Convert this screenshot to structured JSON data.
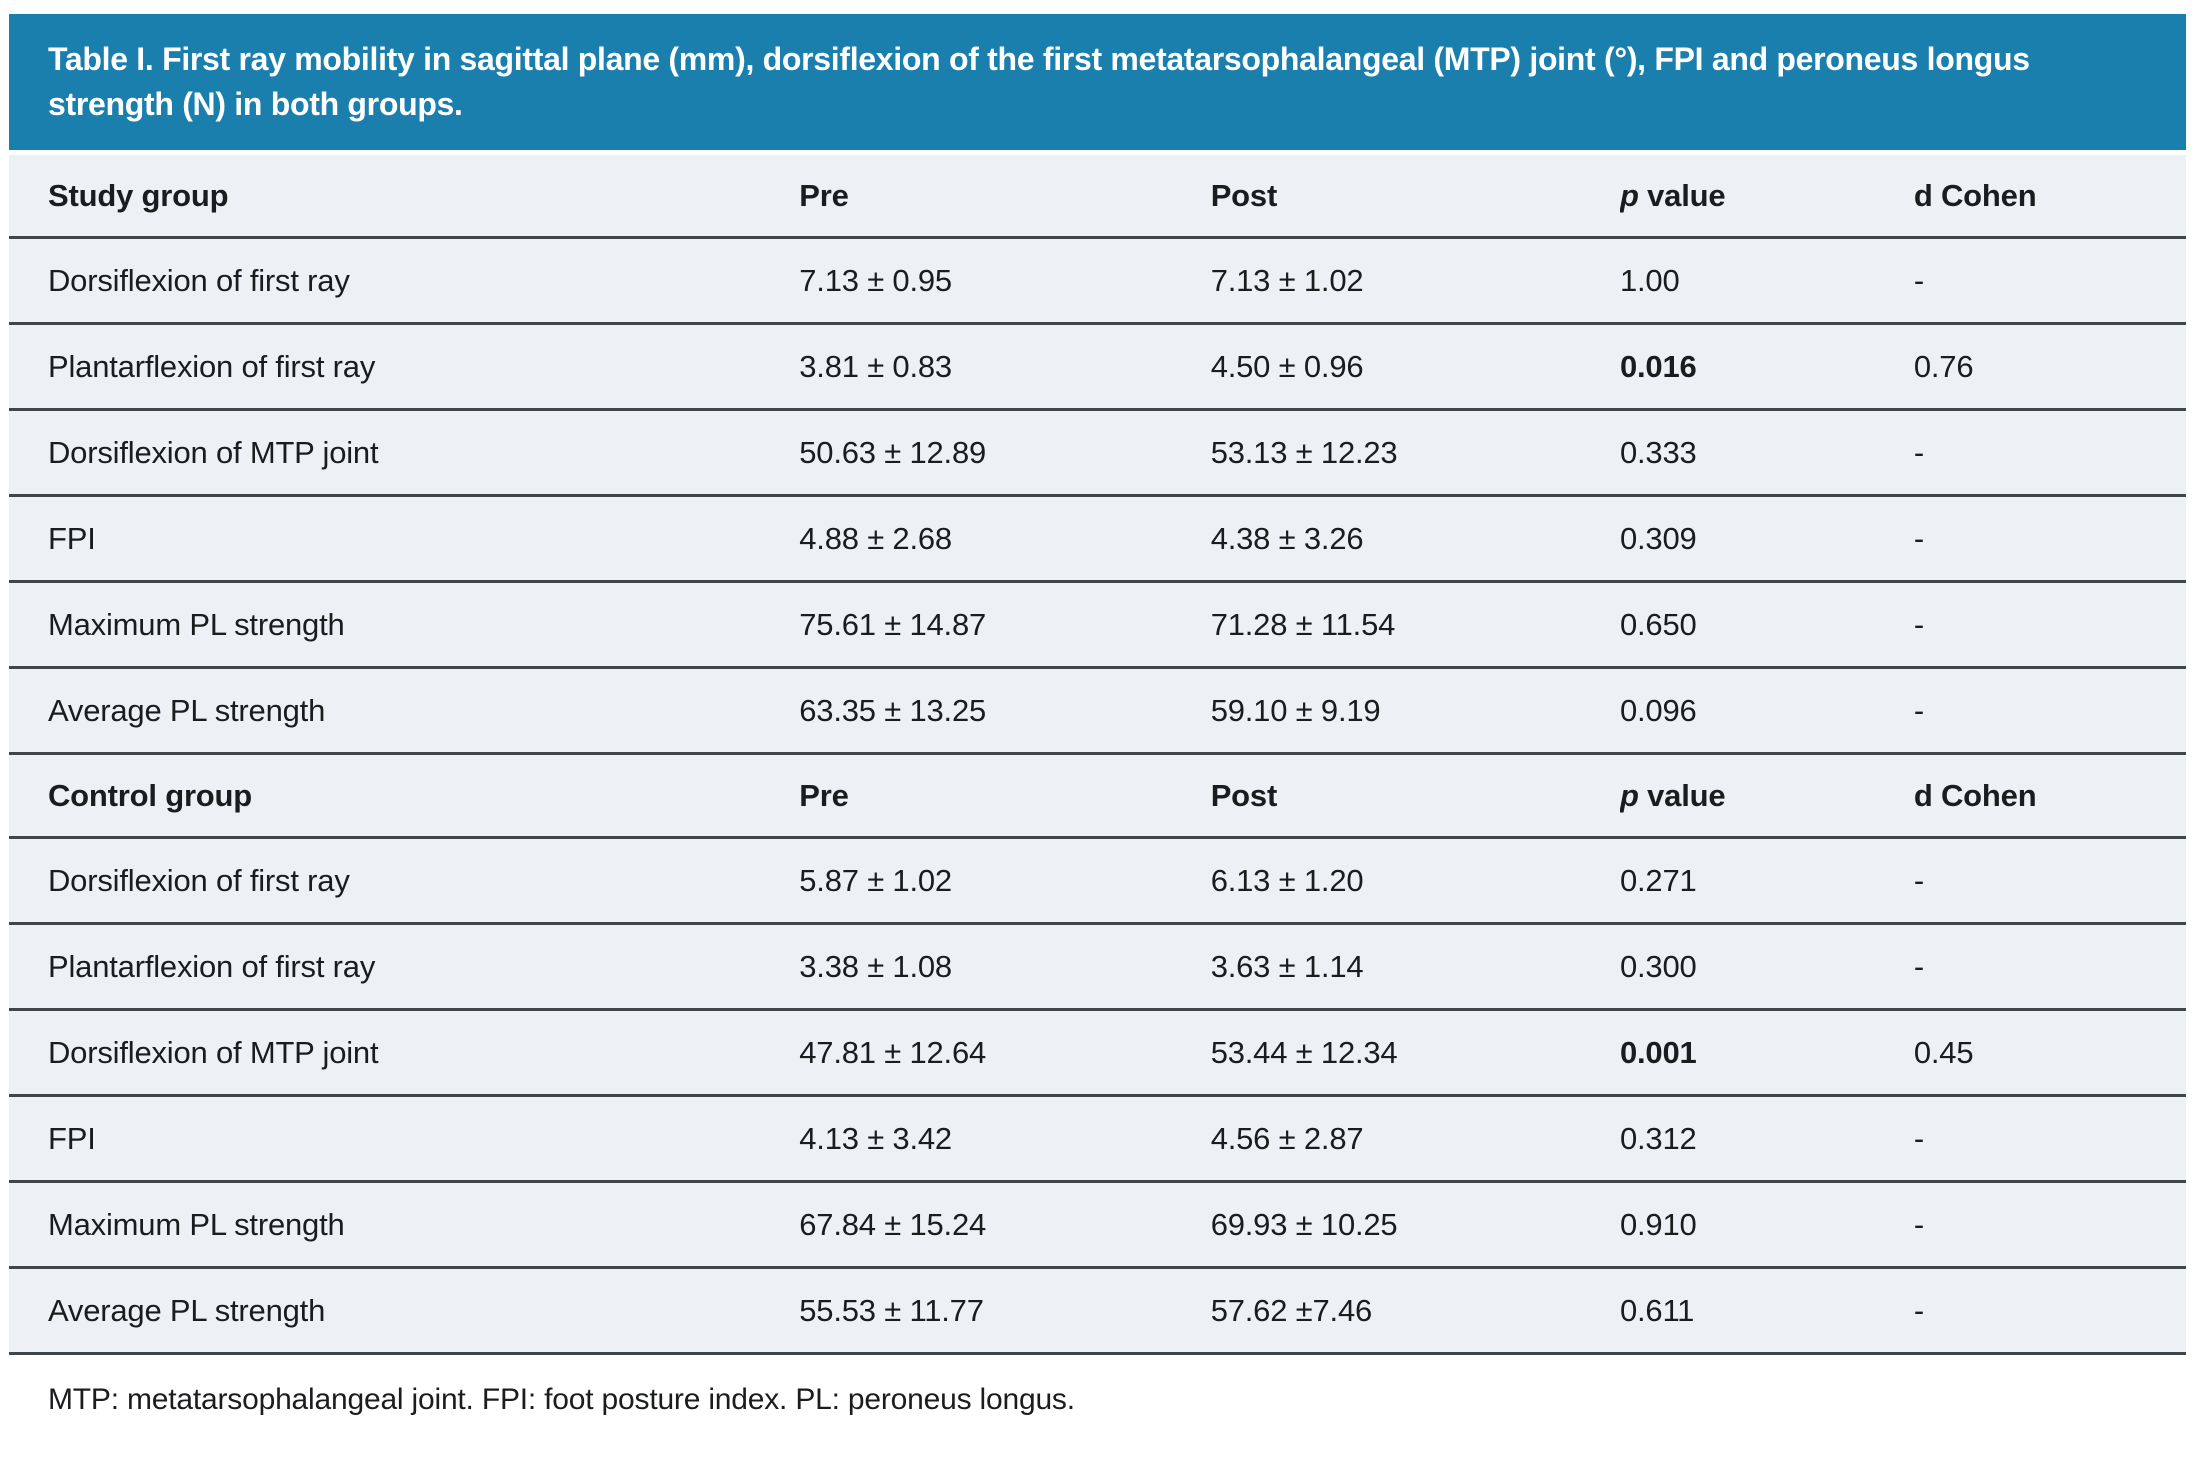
{
  "title": "Table I. First ray mobility in sagittal plane (mm), dorsiflexion of the first metatarsophalangeal (MTP) joint (°), FPI and peroneus longus strength (N) in both groups.",
  "footnote": "MTP: metatarsophalangeal joint. FPI: foot posture index. PL: peroneus longus.",
  "colors": {
    "header_bg": "#1b7fae",
    "row_bg": "#edf1f5",
    "separator_line": "#41464b",
    "title_text": "#ffffff",
    "body_text": "#1b1c1e"
  },
  "column_headers": {
    "pre": "Pre",
    "post": "Post",
    "p_italic": "p",
    "p_rest": " value",
    "d_cohen": "d Cohen"
  },
  "sections": [
    {
      "group_label": "Study group",
      "rows": [
        {
          "label": "Dorsiflexion of first ray",
          "pre": "7.13 ± 0.95",
          "post": "7.13 ± 1.02",
          "p": "1.00",
          "p_bold": false,
          "d": "-"
        },
        {
          "label": "Plantarflexion of first ray",
          "pre": "3.81 ± 0.83",
          "post": "4.50 ± 0.96",
          "p": "0.016",
          "p_bold": true,
          "d": "0.76"
        },
        {
          "label": "Dorsiflexion of MTP joint",
          "pre": "50.63 ± 12.89",
          "post": "53.13 ± 12.23",
          "p": "0.333",
          "p_bold": false,
          "d": "-"
        },
        {
          "label": "FPI",
          "pre": "4.88 ± 2.68",
          "post": "4.38 ± 3.26",
          "p": "0.309",
          "p_bold": false,
          "d": "-"
        },
        {
          "label": "Maximum PL strength",
          "pre": "75.61 ± 14.87",
          "post": "71.28 ± 11.54",
          "p": "0.650",
          "p_bold": false,
          "d": "-"
        },
        {
          "label": "Average PL strength",
          "pre": "63.35 ± 13.25",
          "post": "59.10 ± 9.19",
          "p": "0.096",
          "p_bold": false,
          "d": "-"
        }
      ]
    },
    {
      "group_label": "Control group",
      "rows": [
        {
          "label": "Dorsiflexion of first ray",
          "pre": "5.87 ± 1.02",
          "post": "6.13 ± 1.20",
          "p": "0.271",
          "p_bold": false,
          "d": "-"
        },
        {
          "label": "Plantarflexion of first ray",
          "pre": "3.38 ± 1.08",
          "post": "3.63 ± 1.14",
          "p": "0.300",
          "p_bold": false,
          "d": "-"
        },
        {
          "label": "Dorsiflexion of MTP joint",
          "pre": "47.81 ± 12.64",
          "post": "53.44 ± 12.34",
          "p": "0.001",
          "p_bold": true,
          "d": "0.45"
        },
        {
          "label": "FPI",
          "pre": "4.13 ± 3.42",
          "post": "4.56 ± 2.87",
          "p": "0.312",
          "p_bold": false,
          "d": "-"
        },
        {
          "label": "Maximum PL strength",
          "pre": "67.84 ± 15.24",
          "post": "69.93 ± 10.25",
          "p": "0.910",
          "p_bold": false,
          "d": "-"
        },
        {
          "label": "Average PL strength",
          "pre": "55.53 ± 11.77",
          "post": "57.62 ±7.46",
          "p": "0.611",
          "p_bold": false,
          "d": "-"
        }
      ]
    }
  ]
}
